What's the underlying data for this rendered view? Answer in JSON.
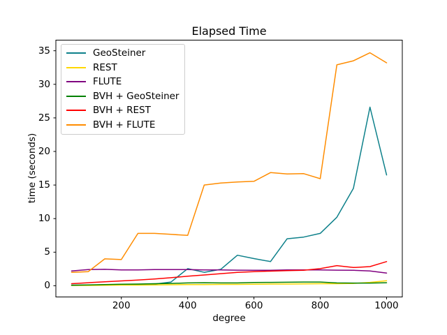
{
  "chart_data": {
    "type": "line",
    "title": "Elapsed Time",
    "xlabel": "degree",
    "ylabel": "time (seconds)",
    "grid": false,
    "legend_position": "upper-left",
    "xlim": [
      2.5,
      1047.5
    ],
    "ylim": [
      -1.67,
      36.58
    ],
    "xticks": [
      200,
      400,
      600,
      800,
      1000
    ],
    "yticks": [
      0,
      5,
      10,
      15,
      20,
      25,
      30,
      35
    ],
    "x": [
      50,
      100,
      150,
      200,
      250,
      300,
      350,
      400,
      450,
      500,
      550,
      600,
      650,
      700,
      750,
      800,
      850,
      900,
      950,
      1000
    ],
    "series": [
      {
        "name": "GeoSteiner",
        "color": "#0d808a",
        "values": [
          0.1,
          0.1,
          0.15,
          0.2,
          0.2,
          0.25,
          0.55,
          2.55,
          2.0,
          2.45,
          4.55,
          4.05,
          3.6,
          7.0,
          7.25,
          7.8,
          10.2,
          14.5,
          26.6,
          16.5
        ]
      },
      {
        "name": "REST",
        "color": "#ffd700",
        "values": [
          0.04,
          0.05,
          0.08,
          0.1,
          0.1,
          0.12,
          0.15,
          0.18,
          0.18,
          0.2,
          0.2,
          0.22,
          0.25,
          0.25,
          0.28,
          0.3,
          0.3,
          0.35,
          0.5,
          0.75
        ]
      },
      {
        "name": "FLUTE",
        "color": "#800080",
        "values": [
          2.2,
          2.42,
          2.45,
          2.35,
          2.35,
          2.4,
          2.4,
          2.42,
          2.35,
          2.35,
          2.32,
          2.3,
          2.3,
          2.35,
          2.35,
          2.35,
          2.32,
          2.3,
          2.2,
          1.9
        ]
      },
      {
        "name": "BVH + GeoSteiner",
        "color": "#008000",
        "values": [
          0.08,
          0.12,
          0.18,
          0.22,
          0.25,
          0.3,
          0.35,
          0.42,
          0.45,
          0.42,
          0.42,
          0.48,
          0.5,
          0.52,
          0.55,
          0.55,
          0.42,
          0.4,
          0.4,
          0.45
        ]
      },
      {
        "name": "BVH + REST",
        "color": "#ff0000",
        "values": [
          0.3,
          0.45,
          0.6,
          0.72,
          0.85,
          1.0,
          1.2,
          1.42,
          1.6,
          1.8,
          2.0,
          2.1,
          2.18,
          2.25,
          2.3,
          2.55,
          3.0,
          2.72,
          2.85,
          3.6
        ]
      },
      {
        "name": "BVH + FLUTE",
        "color": "#ff8c00",
        "values": [
          2.0,
          2.1,
          4.0,
          3.9,
          7.8,
          7.8,
          7.65,
          7.5,
          15.0,
          15.3,
          15.45,
          15.55,
          16.85,
          16.65,
          16.7,
          15.95,
          32.9,
          33.5,
          34.7,
          33.2
        ]
      }
    ]
  }
}
